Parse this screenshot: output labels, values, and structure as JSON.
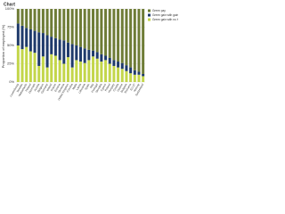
{
  "chart_data": {
    "type": "stacked-bar",
    "title": "Chart",
    "y_label": "Proportion of employed (%)",
    "categories": [
      "Luxembourg",
      "Sweden",
      "Netherlands",
      "Finland",
      "Denmark",
      "Austria",
      "Belgium",
      "Germany",
      "Ireland",
      "France",
      "Estonia",
      "Slovenia",
      "United Kingdom",
      "Czechia",
      "Malta",
      "Latvia",
      "Lithuania",
      "Spain",
      "Italy",
      "Portugal",
      "Slovakia",
      "Cyprus",
      "Poland",
      "Hungary",
      "Croatia",
      "Greece",
      "Bulgaria",
      "Romania",
      "EU-27",
      "Norway",
      "Switzerland"
    ],
    "series": [
      {
        "name": "Green gain with no X",
        "color": "#c3d64a",
        "values": [
          50,
          45,
          48,
          42,
          40,
          22,
          35,
          20,
          38,
          36,
          30,
          25,
          34,
          20,
          30,
          28,
          26,
          30,
          35,
          32,
          28,
          30,
          25,
          22,
          20,
          18,
          15,
          12,
          10,
          10,
          8
        ]
      },
      {
        "name": "Green gain with gain",
        "color": "#1f3a6b",
        "values": [
          30,
          32,
          26,
          30,
          30,
          46,
          32,
          44,
          24,
          24,
          28,
          32,
          20,
          32,
          20,
          20,
          20,
          14,
          8,
          9,
          10,
          6,
          8,
          8,
          8,
          8,
          8,
          8,
          6,
          4,
          3
        ]
      },
      {
        "name": "Green pay",
        "color": "#6e7c36",
        "values": [
          20,
          23,
          26,
          28,
          30,
          32,
          33,
          36,
          38,
          40,
          42,
          43,
          46,
          48,
          50,
          52,
          54,
          56,
          57,
          59,
          62,
          64,
          67,
          70,
          72,
          74,
          77,
          80,
          84,
          86,
          89
        ]
      }
    ],
    "ylim": [
      0,
      100
    ],
    "yticks": [
      {
        "value": 0,
        "label": "0%"
      },
      {
        "value": 25,
        "label": "25%"
      },
      {
        "value": 50,
        "label": "50%"
      },
      {
        "value": 75,
        "label": "75%"
      },
      {
        "value": 100,
        "label": "100%"
      }
    ],
    "grid": true
  }
}
